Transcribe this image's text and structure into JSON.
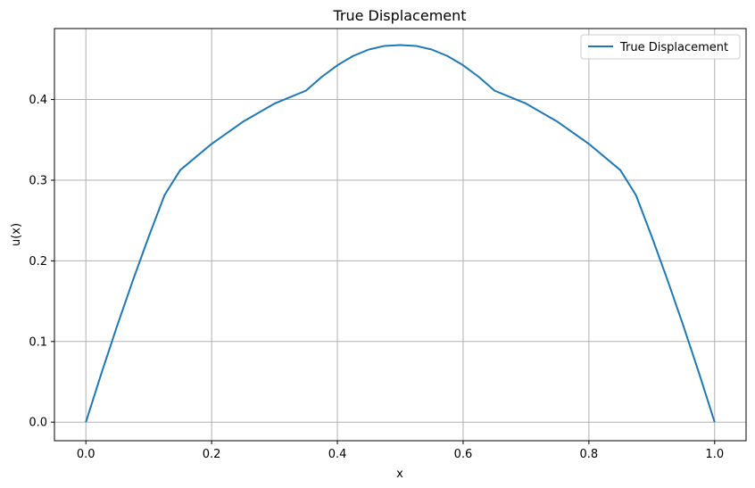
{
  "chart_data": {
    "type": "line",
    "title": "True Displacement",
    "xlabel": "x",
    "ylabel": "u(x)",
    "xlim": [
      -0.05,
      1.05
    ],
    "ylim": [
      -0.023,
      0.488
    ],
    "xticks": [
      0.0,
      0.2,
      0.4,
      0.6,
      0.8,
      1.0
    ],
    "xtick_labels": [
      "0.0",
      "0.2",
      "0.4",
      "0.6",
      "0.8",
      "1.0"
    ],
    "yticks": [
      0.0,
      0.1,
      0.2,
      0.3,
      0.4
    ],
    "ytick_labels": [
      "0.0",
      "0.1",
      "0.2",
      "0.3",
      "0.4"
    ],
    "grid": true,
    "legend_position": "top-right",
    "series": [
      {
        "name": "True Displacement",
        "color": "#1f77b4",
        "x": [
          0.0,
          0.025,
          0.05,
          0.075,
          0.1,
          0.125,
          0.15,
          0.2,
          0.25,
          0.3,
          0.35,
          0.375,
          0.4,
          0.425,
          0.45,
          0.475,
          0.5,
          0.525,
          0.55,
          0.575,
          0.6,
          0.625,
          0.65,
          0.7,
          0.75,
          0.8,
          0.85,
          0.875,
          0.9,
          0.925,
          0.95,
          0.975,
          1.0
        ],
        "y": [
          0.0,
          0.0613,
          0.12,
          0.1763,
          0.23,
          0.2813,
          0.3125,
          0.345,
          0.3725,
          0.395,
          0.411,
          0.428,
          0.4425,
          0.454,
          0.462,
          0.4665,
          0.4675,
          0.4665,
          0.462,
          0.454,
          0.4425,
          0.428,
          0.411,
          0.395,
          0.3725,
          0.345,
          0.3125,
          0.2813,
          0.23,
          0.1763,
          0.12,
          0.0613,
          0.0
        ]
      }
    ]
  }
}
